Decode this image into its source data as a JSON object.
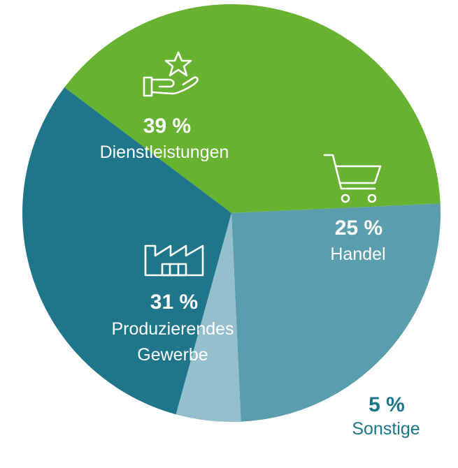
{
  "chart_data": {
    "type": "pie",
    "title": "",
    "slices": [
      {
        "label": "Dienstleistungen",
        "value": 39,
        "value_label": "39 %",
        "color": "#67b230",
        "label_color": "#ffffff",
        "icon": "hand-star-icon"
      },
      {
        "label": "Handel",
        "value": 25,
        "value_label": "25 %",
        "color": "#5a9dac",
        "label_color": "#ffffff",
        "icon": "shopping-cart-icon"
      },
      {
        "label": "Sonstige",
        "value": 5,
        "value_label": "5 %",
        "color": "#94c0cd",
        "label_color": "#1d7589",
        "icon": ""
      },
      {
        "label": "Produzierendes Gewerbe",
        "label_lines": [
          "Produzierendes",
          "Gewerbe"
        ],
        "value": 31,
        "value_label": "31 %",
        "color": "#1f768a",
        "label_color": "#ffffff",
        "icon": "factory-icon"
      }
    ],
    "legend": "none",
    "start": "top-right, clockwise"
  }
}
